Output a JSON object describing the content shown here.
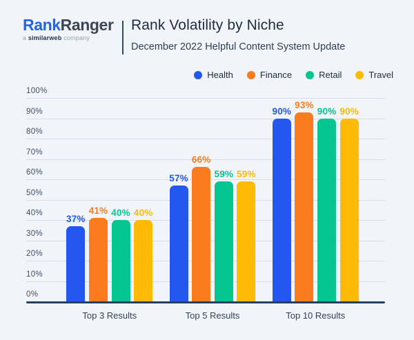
{
  "header": {
    "logo_part1": "Rank",
    "logo_part2": "Ranger",
    "tagline_prefix": "a ",
    "tagline_bold": "similarweb",
    "tagline_suffix": " company",
    "title": "Rank Volatility by Niche",
    "subtitle": "December 2022 Helpful Content System Update"
  },
  "colors": {
    "background": "#F1F5FA",
    "logo_blue": "#2563E8",
    "logo_dark": "#3C4654",
    "title_navy": "#1E2C40",
    "gridline": "#D7DDE8",
    "axis_line": "#24405E",
    "tick_label": "#3E4E66",
    "health_blue": "#2457F0",
    "finance_orange": "#FB7C1E",
    "retail_teal": "#05C691",
    "travel_yellow": "#FFBA05"
  },
  "chart_data": {
    "type": "bar",
    "title": "Rank Volatility by Niche",
    "subtitle": "December 2022 Helpful Content System Update",
    "categories": [
      "Top 3 Results",
      "Top 5 Results",
      "Top 10 Results"
    ],
    "series": [
      {
        "name": "Health",
        "color": "#2457F0",
        "values": [
          37,
          57,
          90
        ]
      },
      {
        "name": "Finance",
        "color": "#FB7C1E",
        "values": [
          41,
          66,
          93
        ]
      },
      {
        "name": "Retail",
        "color": "#05C691",
        "values": [
          40,
          59,
          90
        ]
      },
      {
        "name": "Travel",
        "color": "#FFBA05",
        "values": [
          40,
          59,
          90
        ]
      }
    ],
    "value_suffix": "%",
    "y_ticks": [
      "100%",
      "90%",
      "80%",
      "70%",
      "60%",
      "50%",
      "40%",
      "30%",
      "20%",
      "10%",
      "0%"
    ],
    "ylim": [
      0,
      100
    ],
    "grid": true,
    "legend_position": "top-right"
  }
}
